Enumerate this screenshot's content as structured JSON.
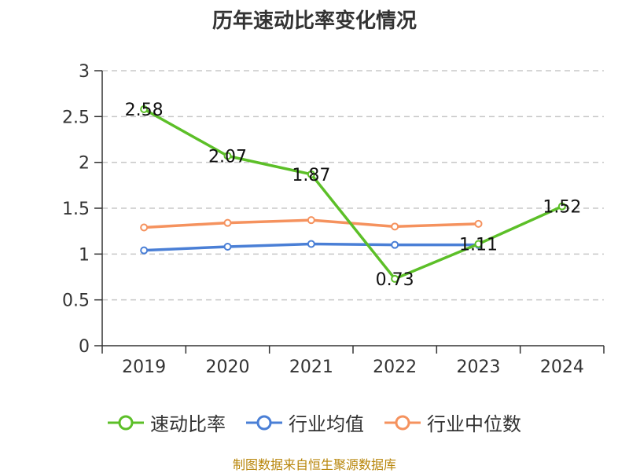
{
  "chart_data": {
    "type": "line",
    "title": "历年速动比率变化情况",
    "categories": [
      "2019",
      "2020",
      "2021",
      "2022",
      "2023",
      "2024"
    ],
    "ylim": [
      0,
      3
    ],
    "yticks": [
      0,
      0.5,
      1,
      1.5,
      2,
      2.5,
      3
    ],
    "ytick_labels": [
      "0",
      "0.5",
      "1",
      "1.5",
      "2",
      "2.5",
      "3"
    ],
    "grid": true,
    "legend_position": "bottom",
    "series": [
      {
        "name": "速动比率",
        "color": "#5cbf28",
        "values": [
          2.58,
          2.07,
          1.87,
          0.73,
          1.11,
          1.52
        ],
        "labels": [
          "2.58",
          "2.07",
          "1.87",
          "0.73",
          "1.11",
          "1.52"
        ]
      },
      {
        "name": "行业均值",
        "color": "#4a7fd6",
        "values": [
          1.04,
          1.08,
          1.11,
          1.1,
          1.1,
          null
        ]
      },
      {
        "name": "行业中位数",
        "color": "#f5925e",
        "values": [
          1.29,
          1.34,
          1.37,
          1.3,
          1.33,
          null
        ]
      }
    ]
  },
  "source_note": "制图数据来自恒生聚源数据库"
}
